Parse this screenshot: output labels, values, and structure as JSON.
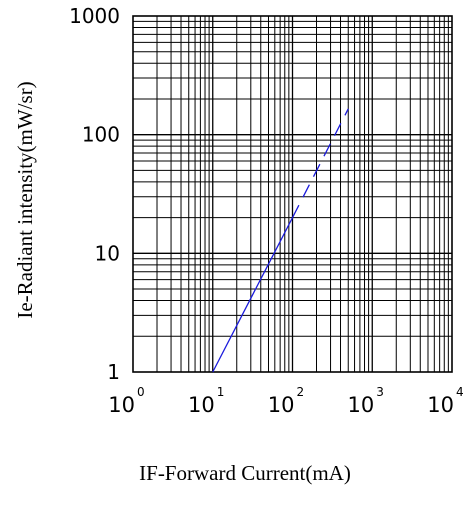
{
  "chart_data": {
    "type": "line",
    "xlabel": "IF-Forward Current(mA)",
    "ylabel": "Ie-Radiant intensity(mW/sr)",
    "x_scale": "log",
    "y_scale": "log",
    "xlim": [
      1,
      10000
    ],
    "ylim": [
      1,
      1000
    ],
    "grid": true,
    "x_ticks": [
      {
        "value": 1,
        "base": "10",
        "exp": "0"
      },
      {
        "value": 10,
        "base": "10",
        "exp": "1"
      },
      {
        "value": 100,
        "base": "10",
        "exp": "2"
      },
      {
        "value": 1000,
        "base": "10",
        "exp": "3"
      },
      {
        "value": 10000,
        "base": "10",
        "exp": "4"
      }
    ],
    "y_ticks": [
      {
        "value": 1,
        "label": "1"
      },
      {
        "value": 10,
        "label": "10"
      },
      {
        "value": 100,
        "label": "100"
      },
      {
        "value": 1000,
        "label": "1000"
      }
    ],
    "series": [
      {
        "style": "solid",
        "color": "#1a1adc",
        "x": [
          10,
          100
        ],
        "y": [
          1,
          20
        ]
      },
      {
        "style": "dashed",
        "color": "#1a1adc",
        "x": [
          100,
          500
        ],
        "y": [
          20,
          165
        ]
      }
    ]
  }
}
